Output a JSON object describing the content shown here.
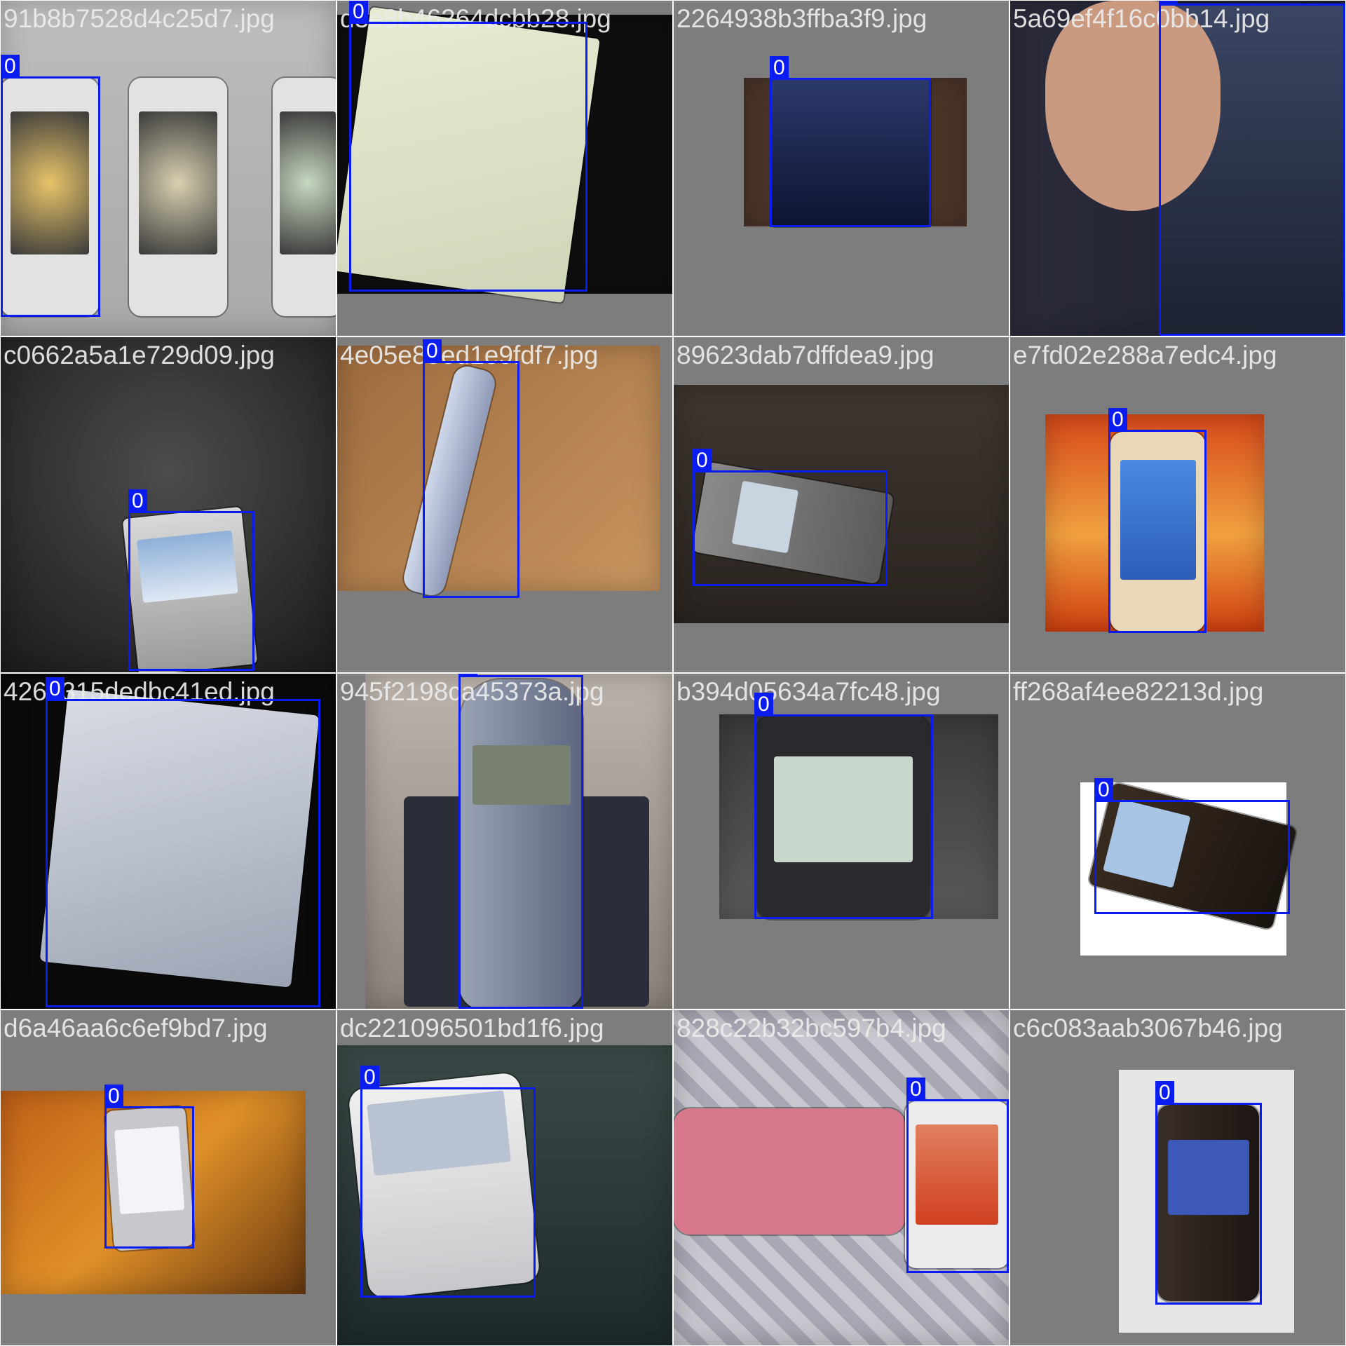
{
  "colors": {
    "box": "#0b1cf0",
    "label_text": "#ffffff",
    "filename_text": "#ebebeb"
  },
  "tiles": [
    {
      "filename": "91b8b7528d4c25d7.jpg",
      "box_label": "0"
    },
    {
      "filename": "d3e8b46264dcbb28.jpg",
      "box_label": "0"
    },
    {
      "filename": "2264938b3ffba3f9.jpg",
      "box_label": "0"
    },
    {
      "filename": "5a69ef4f16c0bb14.jpg",
      "box_label": "0"
    },
    {
      "filename": "c0662a5a1e729d09.jpg",
      "box_label": "0"
    },
    {
      "filename": "4e05e89ed1e9fdf7.jpg",
      "box_label": "0"
    },
    {
      "filename": "89623dab7dffdea9.jpg",
      "box_label": "0"
    },
    {
      "filename": "e7fd02e288a7edc4.jpg",
      "box_label": "0"
    },
    {
      "filename": "4260315dedbc41ed.jpg",
      "box_label": "0"
    },
    {
      "filename": "945f2198ca45373a.jpg",
      "box_label": "0"
    },
    {
      "filename": "b394d05634a7fc48.jpg",
      "box_label": "0"
    },
    {
      "filename": "ff268af4ee82213d.jpg",
      "box_label": "0"
    },
    {
      "filename": "d6a46aa6c6ef9bd7.jpg",
      "box_label": "0"
    },
    {
      "filename": "dc221096501bd1f6.jpg",
      "box_label": "0"
    },
    {
      "filename": "828c22b32bc597b4.jpg",
      "box_label": "0"
    },
    {
      "filename": "c6c083aab3067b46.jpg",
      "box_label": "0"
    }
  ]
}
